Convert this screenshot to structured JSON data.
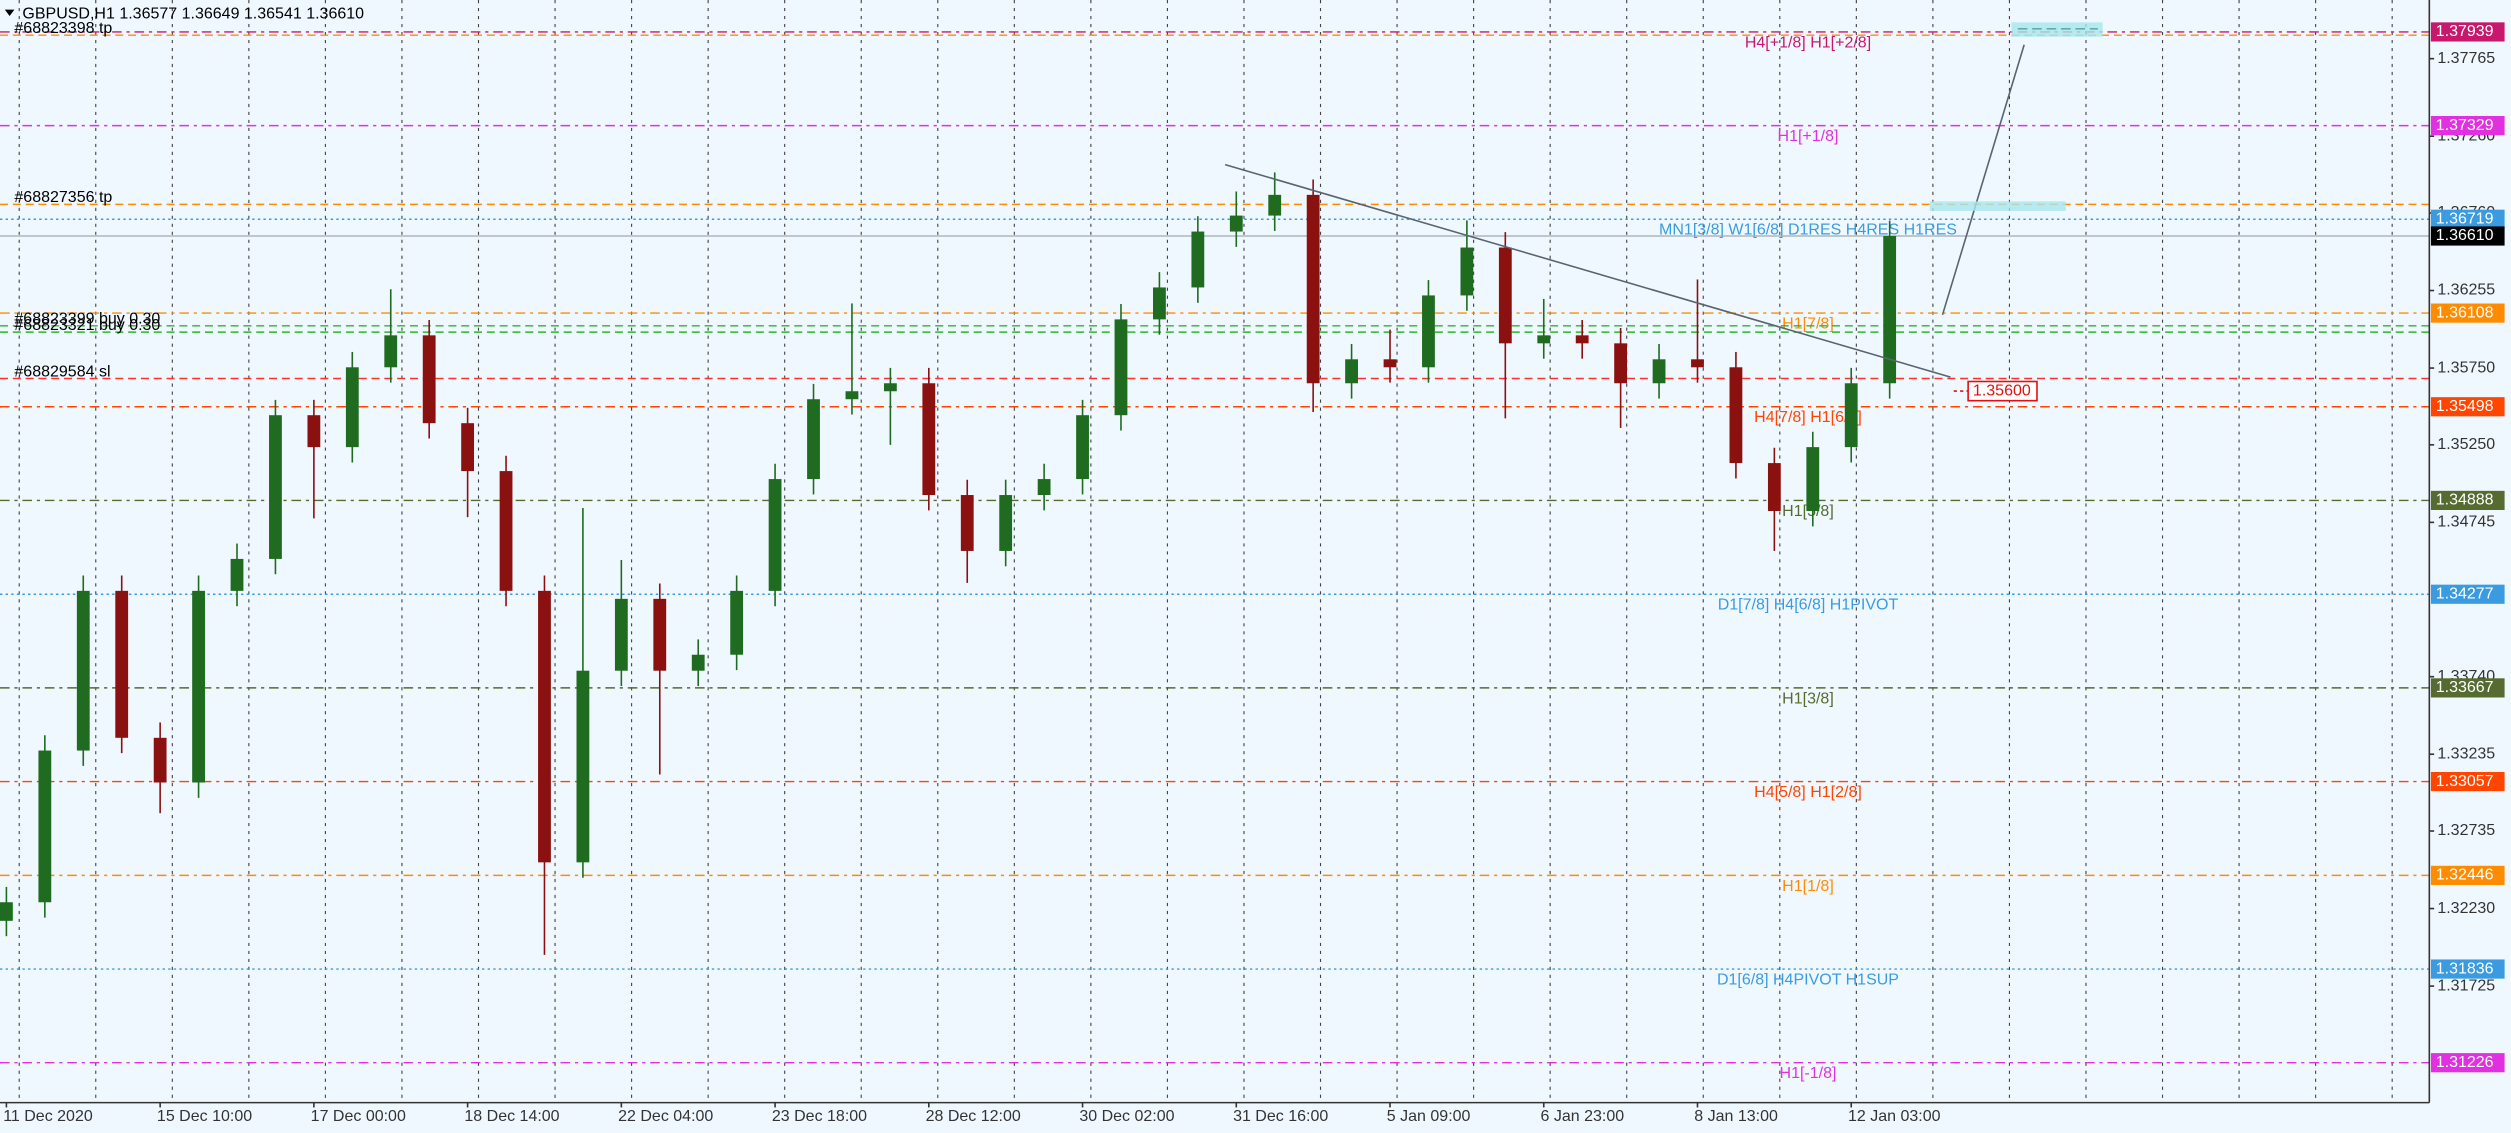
{
  "chart_data": {
    "type": "candlestick",
    "title": "GBPUSD,H1  1.36577 1.36649 1.36541 1.36610",
    "categories": [
      "11 Dec 2020",
      null,
      null,
      null,
      "15 Dec 10:00",
      null,
      null,
      null,
      "17 Dec 00:00",
      null,
      null,
      null,
      "18 Dec 14:00",
      null,
      null,
      null,
      "22 Dec 04:00",
      null,
      null,
      null,
      "23 Dec 18:00",
      null,
      null,
      null,
      "28 Dec 12:00",
      null,
      null,
      null,
      "30 Dec 02:00",
      null,
      null,
      null,
      "31 Dec 16:00",
      null,
      null,
      null,
      "5 Jan 09:00",
      null,
      null,
      null,
      "6 Jan 23:00",
      null,
      null,
      null,
      "8 Jan 13:00",
      null,
      null,
      null,
      "12 Jan 03:00",
      null
    ],
    "open": [
      1.3215,
      1.32271,
      1.33259,
      1.34299,
      1.33342,
      1.33051,
      1.34299,
      1.34507,
      1.35443,
      1.35235,
      1.35755,
      1.35963,
      1.35391,
      1.35079,
      1.34299,
      1.32531,
      1.33779,
      1.34247,
      1.33779,
      1.33883,
      1.34299,
      1.35027,
      1.35547,
      1.35599,
      1.35651,
      1.34923,
      1.34559,
      1.34923,
      1.35027,
      1.35443,
      1.36067,
      1.36275,
      1.36639,
      1.36743,
      1.36878,
      1.35651,
      1.35807,
      1.35755,
      1.36223,
      1.36535,
      1.35911,
      1.35963,
      1.35911,
      1.35651,
      1.35807,
      1.35755,
      1.35131,
      1.34819,
      1.35235,
      1.35651
    ],
    "high": [
      1.32371,
      1.33359,
      1.34399,
      1.34399,
      1.33442,
      1.34399,
      1.34607,
      1.35543,
      1.35543,
      1.35855,
      1.36263,
      1.36063,
      1.35491,
      1.35179,
      1.34399,
      1.34839,
      1.345,
      1.34347,
      1.33983,
      1.34399,
      1.35127,
      1.35647,
      1.36171,
      1.35751,
      1.35751,
      1.35023,
      1.35023,
      1.35127,
      1.35543,
      1.36167,
      1.36375,
      1.36739,
      1.369,
      1.37024,
      1.36978,
      1.35907,
      1.36,
      1.36323,
      1.36712,
      1.36635,
      1.362,
      1.36063,
      1.36011,
      1.35907,
      1.36327,
      1.35855,
      1.35231,
      1.35335,
      1.35751,
      1.3671
    ],
    "low": [
      1.3205,
      1.32171,
      1.33159,
      1.33242,
      1.32851,
      1.32951,
      1.34199,
      1.34407,
      1.34771,
      1.35135,
      1.35655,
      1.35291,
      1.34779,
      1.34199,
      1.31928,
      1.32431,
      1.33679,
      1.33103,
      1.33679,
      1.33783,
      1.34199,
      1.34927,
      1.35447,
      1.3525,
      1.34823,
      1.34351,
      1.34459,
      1.34823,
      1.34927,
      1.35343,
      1.35967,
      1.36175,
      1.36539,
      1.36643,
      1.35464,
      1.35551,
      1.35655,
      1.35655,
      1.36123,
      1.35422,
      1.35811,
      1.35811,
      1.3536,
      1.35551,
      1.35655,
      1.35031,
      1.34559,
      1.34719,
      1.35135,
      1.35551
    ],
    "close": [
      1.32271,
      1.33259,
      1.34299,
      1.33342,
      1.33051,
      1.34299,
      1.34507,
      1.35443,
      1.35235,
      1.35755,
      1.35963,
      1.35391,
      1.35079,
      1.34299,
      1.32531,
      1.33779,
      1.34247,
      1.33779,
      1.33883,
      1.34299,
      1.35027,
      1.35547,
      1.35599,
      1.35651,
      1.34923,
      1.34559,
      1.34923,
      1.35027,
      1.35443,
      1.36067,
      1.36275,
      1.36639,
      1.36743,
      1.36878,
      1.35651,
      1.35807,
      1.35755,
      1.36223,
      1.36535,
      1.35911,
      1.35963,
      1.35911,
      1.35651,
      1.35807,
      1.35755,
      1.35131,
      1.34819,
      1.35235,
      1.35651,
      1.3661
    ],
    "up_color": "#1f6b1f",
    "down_color": "#8b1010",
    "ylim": [
      1.30966,
      1.38147
    ],
    "yticks": [
      1.37765,
      {
        "value": 1.3726,
        "label": "1.37260"
      },
      {
        "value": 1.3676,
        "label": "1.36760"
      },
      1.36255,
      {
        "value": 1.3575,
        "label": "1.35750"
      },
      {
        "value": 1.3525,
        "label": "1.35250"
      },
      1.34745,
      {
        "value": 1.3374,
        "label": "1.33740"
      },
      1.33235,
      1.32735,
      {
        "value": 1.3223,
        "label": "1.32230"
      },
      1.31725
    ],
    "levels": {
      "names": [
        "H4[+1/8] H1[+2/8]",
        "H1[+1/8]",
        "MN1[3/8] W1[6/8] D1RES H4RES H1RES",
        "H1[7/8]",
        "H4[7/8] H1[6/8]",
        "H1[5/8]",
        "D1[7/8] H4[6/8] H1PIVOT",
        "H1[3/8]",
        "H4[5/8] H1[2/8]",
        "H1[1/8]",
        "D1[6/8] H4PIVOT H1SUP",
        "H1[-1/8]"
      ],
      "values": [
        1.37939,
        1.37329,
        1.36719,
        1.36108,
        1.35498,
        1.34888,
        1.34277,
        1.33667,
        1.33057,
        1.32446,
        1.31836,
        1.31226
      ],
      "value_labels": [
        "1.37939",
        "1.37329",
        "1.36719",
        "1.36108",
        "1.35498",
        "1.34888",
        "1.34277",
        "1.33667",
        "1.33057",
        "1.32446",
        "1.31836",
        "1.31226"
      ],
      "colors": [
        "#c8186e",
        "#e030e0",
        "#3a9be0",
        "#ff8c00",
        "#ff4500",
        "#556b2f",
        "#3a9be0",
        "#556b2f",
        "#ff4500",
        "#ff8c00",
        "#3a9be0",
        "#e030e0"
      ],
      "line_styles": [
        "dash-dot",
        "dash-dot",
        "dotted",
        "dash-dot",
        "dash-dot",
        "dash-dot",
        "dotted",
        "dash-dot",
        "dash-dot",
        "dash-dot",
        "dotted",
        "dash-dot"
      ]
    },
    "current_price": {
      "value": 1.3661,
      "value_label": "1.36610"
    },
    "orders": {
      "labels": [
        "#68823398 tp",
        "#68827356 tp",
        "#68823399 buy 0.30",
        "#68823321 buy 0.30",
        "#68829584 sl"
      ],
      "values": [
        1.37918,
        1.36816,
        1.36025,
        1.35984,
        1.35682
      ],
      "colors": [
        "#ff8c00",
        "#ff8c00",
        "#2db52d",
        "#2db52d",
        "#ff3030"
      ]
    },
    "pending_order": {
      "value": 1.356,
      "value_label": "1.35600",
      "color": "#e01010"
    }
  }
}
